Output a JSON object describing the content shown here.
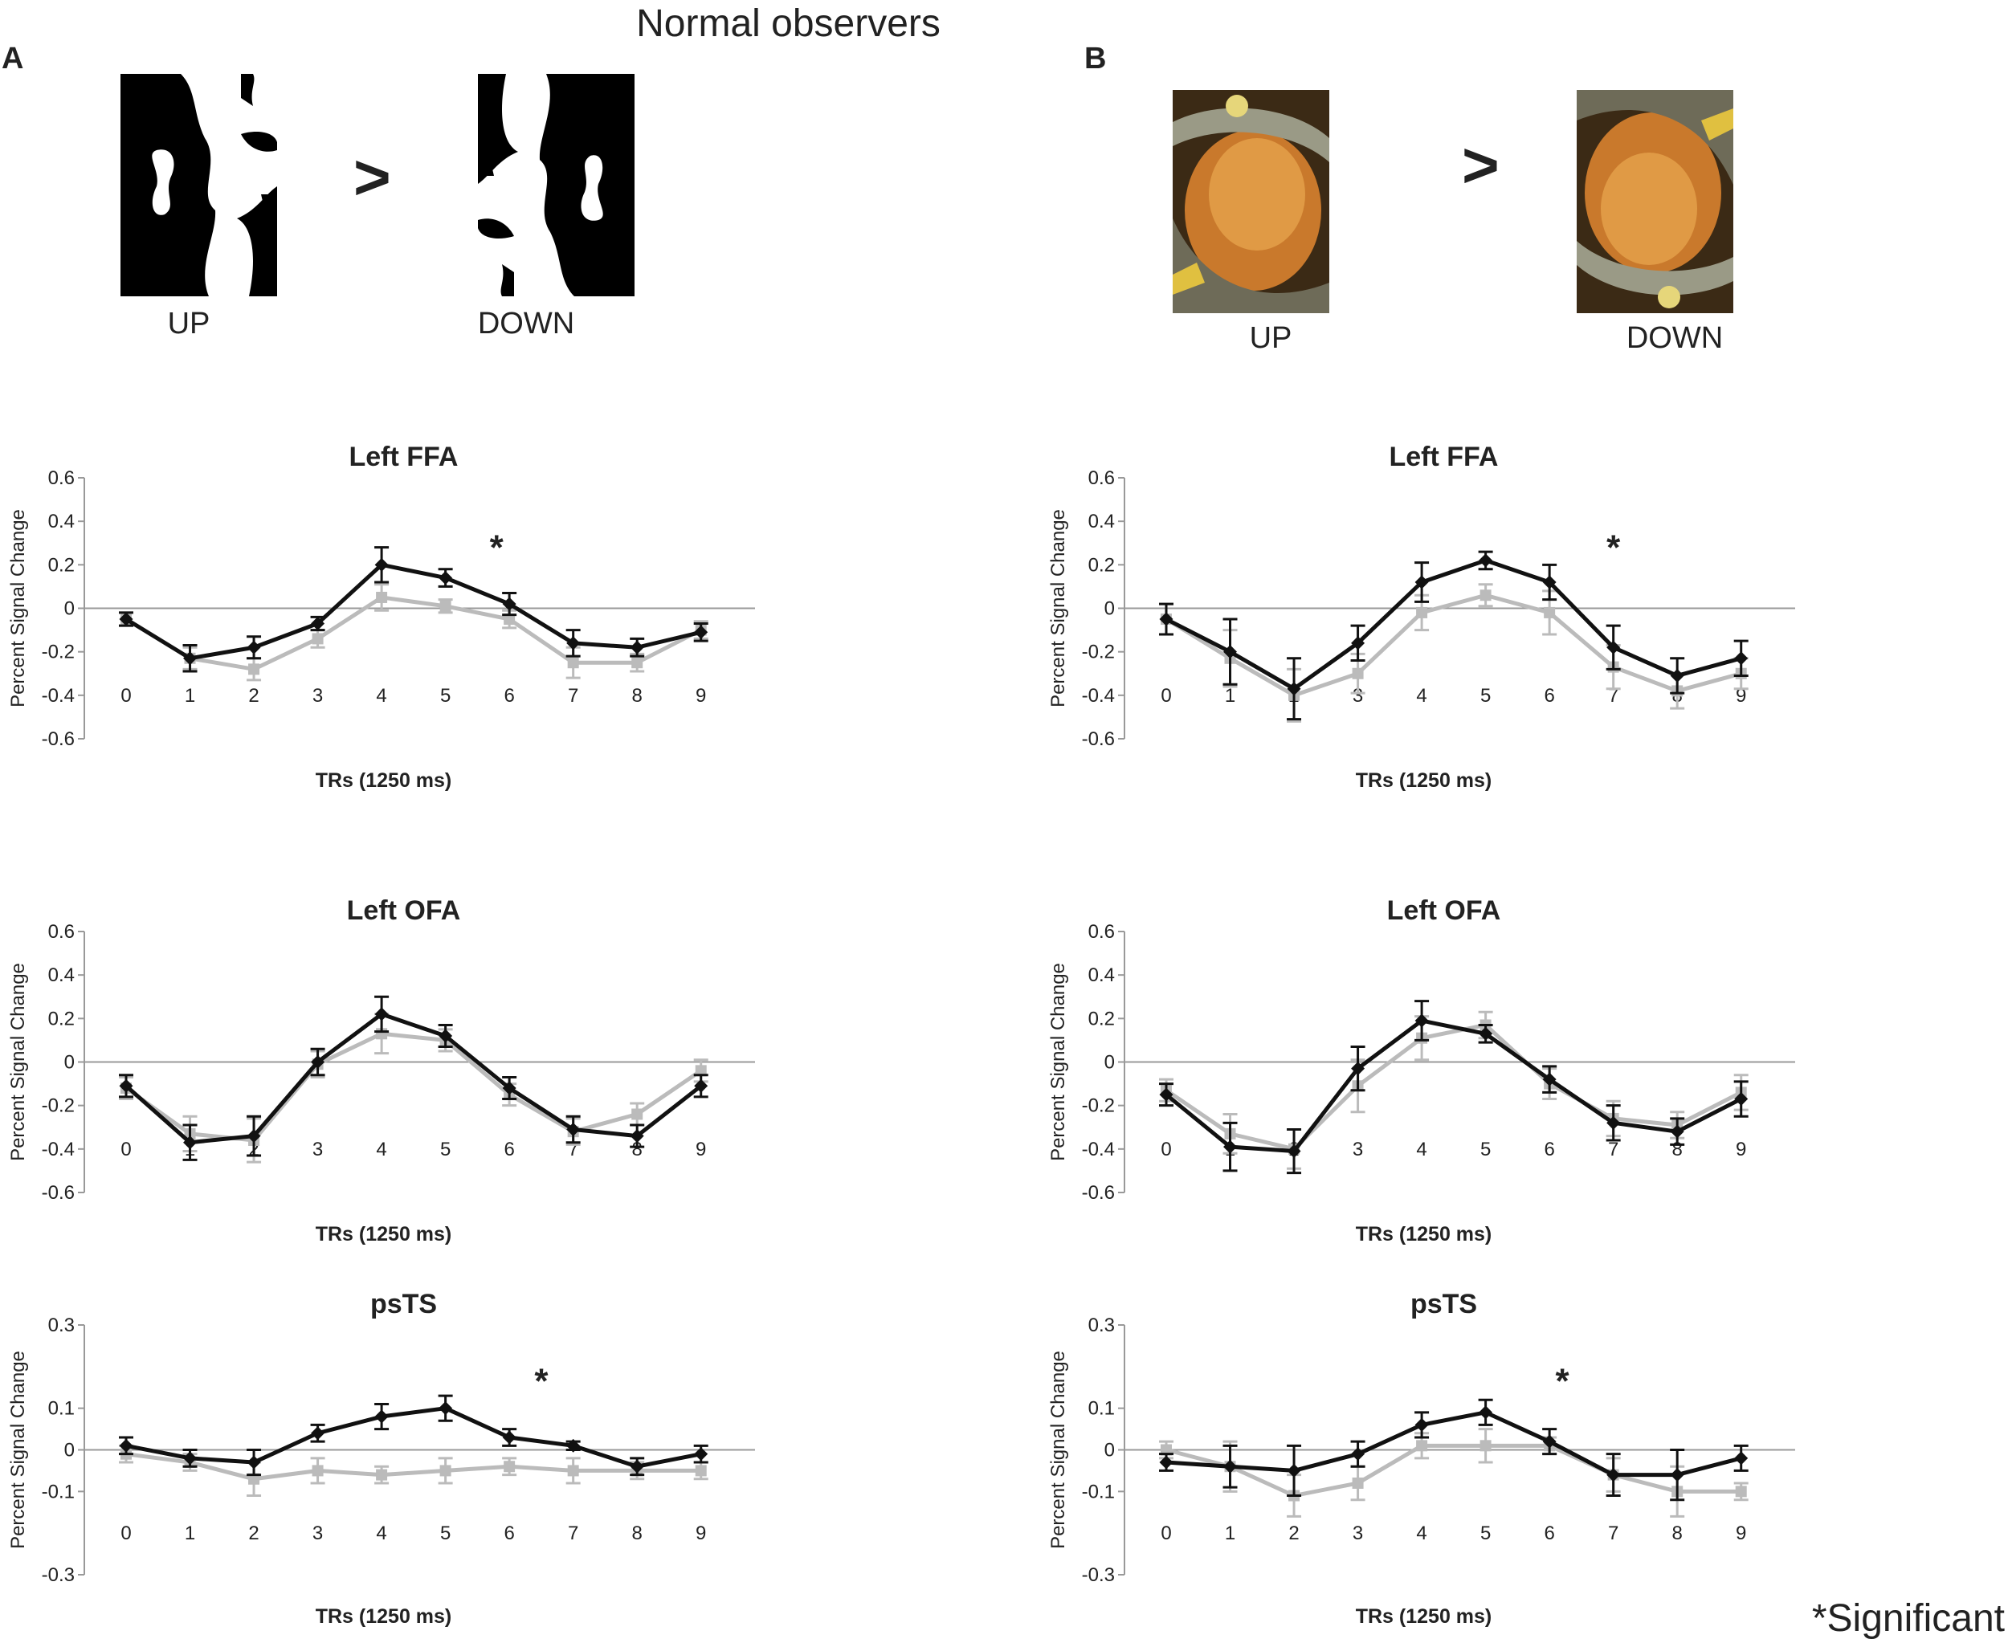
{
  "figure_title": "Normal observers",
  "panels": [
    {
      "letter": "A",
      "up_label": "UP",
      "down_label": "DOWN",
      "compare_symbol": ">"
    },
    {
      "letter": "B",
      "up_label": "UP",
      "down_label": "DOWN",
      "compare_symbol": ">"
    }
  ],
  "significance_note": "*Significant",
  "colors": {
    "upright_series": "#111111",
    "inverted_series": "#bbbbbb",
    "axis": "#999999"
  },
  "chart_data": [
    {
      "type": "line",
      "panel": "A",
      "title": "Left FFA",
      "xlabel": "TRs (1250 ms)",
      "ylabel": "Percent Signal Change",
      "x": [
        0,
        1,
        2,
        3,
        4,
        5,
        6,
        7,
        8,
        9
      ],
      "ylim": [
        -0.6,
        0.6
      ],
      "yticks": [
        "0.6",
        "0.4",
        "0.2",
        "0",
        "-0.2",
        "-0.4",
        "-0.6"
      ],
      "ytick_values": [
        0.6,
        0.4,
        0.2,
        0,
        -0.2,
        -0.4,
        -0.6
      ],
      "series": [
        {
          "values": [
            -0.05,
            -0.23,
            -0.18,
            -0.07,
            0.2,
            0.14,
            0.02,
            -0.16,
            -0.18,
            -0.11
          ],
          "errors": [
            0.03,
            0.06,
            0.05,
            0.03,
            0.08,
            0.04,
            0.05,
            0.06,
            0.04,
            0.04
          ]
        },
        {
          "values": [
            -0.05,
            -0.23,
            -0.28,
            -0.14,
            0.05,
            0.01,
            -0.05,
            -0.25,
            -0.25,
            -0.1
          ],
          "errors": [
            0.03,
            0.05,
            0.05,
            0.04,
            0.06,
            0.03,
            0.04,
            0.07,
            0.04,
            0.04
          ]
        }
      ],
      "significance_markers": [
        {
          "x": 5.8,
          "y": 0.27,
          "text": "*"
        }
      ]
    },
    {
      "type": "line",
      "panel": "B",
      "title": "Left FFA",
      "xlabel": "TRs (1250 ms)",
      "ylabel": "Percent Signal Change",
      "x": [
        0,
        1,
        2,
        3,
        4,
        5,
        6,
        7,
        8,
        9
      ],
      "ylim": [
        -0.6,
        0.6
      ],
      "yticks": [
        "0.6",
        "0.4",
        "0.2",
        "0",
        "-0.2",
        "-0.4",
        "-0.6"
      ],
      "ytick_values": [
        0.6,
        0.4,
        0.2,
        0,
        -0.2,
        -0.4,
        -0.6
      ],
      "series": [
        {
          "values": [
            -0.05,
            -0.2,
            -0.37,
            -0.16,
            0.12,
            0.22,
            0.12,
            -0.18,
            -0.31,
            -0.23
          ],
          "errors": [
            0.07,
            0.15,
            0.14,
            0.08,
            0.09,
            0.04,
            0.08,
            0.1,
            0.08,
            0.08
          ]
        },
        {
          "values": [
            -0.05,
            -0.23,
            -0.4,
            -0.3,
            -0.02,
            0.06,
            -0.02,
            -0.27,
            -0.38,
            -0.3
          ],
          "errors": [
            0.07,
            0.13,
            0.12,
            0.09,
            0.08,
            0.05,
            0.1,
            0.1,
            0.08,
            0.07
          ]
        }
      ],
      "significance_markers": [
        {
          "x": 7.0,
          "y": 0.27,
          "text": "*"
        }
      ]
    },
    {
      "type": "line",
      "panel": "A",
      "title": "Left OFA",
      "xlabel": "TRs (1250 ms)",
      "ylabel": "Percent Signal Change",
      "x": [
        0,
        1,
        2,
        3,
        4,
        5,
        6,
        7,
        8,
        9
      ],
      "ylim": [
        -0.6,
        0.6
      ],
      "yticks": [
        "0.6",
        "0.4",
        "0.2",
        "0",
        "-0.2",
        "-0.4",
        "-0.6"
      ],
      "ytick_values": [
        0.6,
        0.4,
        0.2,
        0,
        -0.2,
        -0.4,
        -0.6
      ],
      "series": [
        {
          "values": [
            -0.11,
            -0.37,
            -0.34,
            0.0,
            0.22,
            0.12,
            -0.12,
            -0.31,
            -0.34,
            -0.11
          ],
          "errors": [
            0.05,
            0.08,
            0.09,
            0.06,
            0.08,
            0.05,
            0.05,
            0.06,
            0.05,
            0.05
          ]
        },
        {
          "values": [
            -0.12,
            -0.33,
            -0.36,
            -0.01,
            0.13,
            0.1,
            -0.15,
            -0.32,
            -0.24,
            -0.04
          ],
          "errors": [
            0.05,
            0.08,
            0.1,
            0.06,
            0.09,
            0.05,
            0.05,
            0.06,
            0.05,
            0.05
          ]
        }
      ],
      "significance_markers": []
    },
    {
      "type": "line",
      "panel": "B",
      "title": "Left OFA",
      "xlabel": "TRs (1250 ms)",
      "ylabel": "Percent Signal Change",
      "x": [
        0,
        1,
        2,
        3,
        4,
        5,
        6,
        7,
        8,
        9
      ],
      "ylim": [
        -0.6,
        0.6
      ],
      "yticks": [
        "0.6",
        "0.4",
        "0.2",
        "0",
        "-0.2",
        "-0.4",
        "-0.6"
      ],
      "ytick_values": [
        0.6,
        0.4,
        0.2,
        0,
        -0.2,
        -0.4,
        -0.6
      ],
      "series": [
        {
          "values": [
            -0.15,
            -0.39,
            -0.41,
            -0.03,
            0.19,
            0.13,
            -0.08,
            -0.28,
            -0.32,
            -0.17
          ],
          "errors": [
            0.05,
            0.11,
            0.1,
            0.1,
            0.09,
            0.04,
            0.06,
            0.08,
            0.06,
            0.08
          ]
        },
        {
          "values": [
            -0.13,
            -0.33,
            -0.4,
            -0.11,
            0.11,
            0.17,
            -0.1,
            -0.26,
            -0.29,
            -0.14
          ],
          "errors": [
            0.05,
            0.09,
            0.09,
            0.12,
            0.1,
            0.06,
            0.07,
            0.08,
            0.06,
            0.08
          ]
        }
      ],
      "significance_markers": []
    },
    {
      "type": "line",
      "panel": "A",
      "title": "psTS",
      "xlabel": "TRs (1250 ms)",
      "ylabel": "Percent Signal Change",
      "x": [
        0,
        1,
        2,
        3,
        4,
        5,
        6,
        7,
        8,
        9
      ],
      "ylim": [
        -0.3,
        0.3
      ],
      "yticks": [
        "0.3",
        "0.1",
        "0",
        "-0.1",
        "-0.3"
      ],
      "ytick_values": [
        0.3,
        0.1,
        0,
        -0.1,
        -0.3
      ],
      "series": [
        {
          "values": [
            0.01,
            -0.02,
            -0.03,
            0.04,
            0.08,
            0.1,
            0.03,
            0.01,
            -0.04,
            -0.01
          ],
          "errors": [
            0.02,
            0.02,
            0.03,
            0.02,
            0.03,
            0.03,
            0.02,
            0.01,
            0.02,
            0.02
          ]
        },
        {
          "values": [
            -0.01,
            -0.03,
            -0.07,
            -0.05,
            -0.06,
            -0.05,
            -0.04,
            -0.05,
            -0.05,
            -0.05
          ],
          "errors": [
            0.02,
            0.02,
            0.04,
            0.03,
            0.02,
            0.03,
            0.02,
            0.03,
            0.02,
            0.02
          ]
        }
      ],
      "significance_markers": [
        {
          "x": 6.5,
          "y": 0.16,
          "text": "*"
        }
      ]
    },
    {
      "type": "line",
      "panel": "B",
      "title": "psTS",
      "xlabel": "TRs (1250 ms)",
      "ylabel": "Percent Signal Change",
      "x": [
        0,
        1,
        2,
        3,
        4,
        5,
        6,
        7,
        8,
        9
      ],
      "ylim": [
        -0.3,
        0.3
      ],
      "yticks": [
        "0.3",
        "0.1",
        "0",
        "-0.1",
        "-0.3"
      ],
      "ytick_values": [
        0.3,
        0.1,
        0,
        -0.1,
        -0.3
      ],
      "series": [
        {
          "values": [
            -0.03,
            -0.04,
            -0.05,
            -0.01,
            0.06,
            0.09,
            0.02,
            -0.06,
            -0.06,
            -0.02
          ],
          "errors": [
            0.02,
            0.05,
            0.06,
            0.03,
            0.03,
            0.03,
            0.03,
            0.05,
            0.06,
            0.03
          ]
        },
        {
          "values": [
            0.0,
            -0.04,
            -0.11,
            -0.08,
            0.01,
            0.01,
            0.01,
            -0.06,
            -0.1,
            -0.1
          ],
          "errors": [
            0.02,
            0.06,
            0.05,
            0.04,
            0.03,
            0.04,
            0.02,
            0.04,
            0.06,
            0.02
          ]
        }
      ],
      "significance_markers": [
        {
          "x": 6.2,
          "y": 0.16,
          "text": "*"
        }
      ]
    }
  ]
}
